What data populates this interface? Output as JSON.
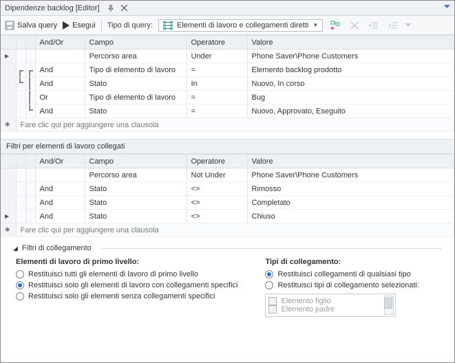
{
  "titlebar": {
    "title": "Dipendenze backlog [Editor]"
  },
  "toolbar": {
    "save_label": "Salva query",
    "run_label": "Esegui",
    "query_type_label": "Tipo di query:",
    "query_type_value": "Elementi di lavoro e collegamenti diretti"
  },
  "grid1": {
    "headers": {
      "andor": "And/Or",
      "campo": "Campo",
      "operatore": "Operatore",
      "valore": "Valore"
    },
    "rows": [
      {
        "andor": "",
        "campo": "Percorso area",
        "operatore": "Under",
        "valore": "Phone Saver\\Phone Customers",
        "arrow": true,
        "b1": "",
        "b2": ""
      },
      {
        "andor": "And",
        "campo": "Tipo di elemento di lavoro",
        "operatore": "=",
        "valore": "Elemento backlog prodotto",
        "arrow": false,
        "b1": "t",
        "b2": "t"
      },
      {
        "andor": "And",
        "campo": "Stato",
        "operatore": "In",
        "valore": "Nuovo, In corso",
        "arrow": false,
        "b1": "b",
        "b2": "m"
      },
      {
        "andor": "Or",
        "campo": "Tipo di elemento di lavoro",
        "operatore": "=",
        "valore": "Bug",
        "arrow": false,
        "b1": "",
        "b2": "m"
      },
      {
        "andor": "And",
        "campo": "Stato",
        "operatore": "=",
        "valore": "Nuovo, Approvato, Eseguito",
        "arrow": false,
        "b1": "",
        "b2": "b"
      }
    ],
    "add_label": "Fare clic qui per aggiungere una clausola"
  },
  "section2": {
    "title": "Filtri per elementi di lavoro collegati"
  },
  "grid2": {
    "headers": {
      "andor": "And/Or",
      "campo": "Campo",
      "operatore": "Operatore",
      "valore": "Valore"
    },
    "rows": [
      {
        "andor": "",
        "campo": "Percorso area",
        "operatore": "Not Under",
        "valore": "Phone Saver\\Phone Customers",
        "arrow": false
      },
      {
        "andor": "And",
        "campo": "Stato",
        "operatore": "<>",
        "valore": "Rimosso",
        "arrow": false
      },
      {
        "andor": "And",
        "campo": "Stato",
        "operatore": "<>",
        "valore": "Completato",
        "arrow": false
      },
      {
        "andor": "And",
        "campo": "Stato",
        "operatore": "<>",
        "valore": "Chiuso",
        "arrow": true
      }
    ],
    "add_label": "Fare clic qui per aggiungere una clausola"
  },
  "link_filters": {
    "title": "Filtri di collegamento",
    "left_title": "Elementi di lavoro di primo livello:",
    "left_options": [
      {
        "label": "Restituisci tutti gli elementi di lavoro di primo livello",
        "checked": false
      },
      {
        "label": "Restituisci solo gli elementi di lavoro con collegamenti specifici",
        "checked": true
      },
      {
        "label": "Restituisci solo gli elementi senza collegamenti specifici",
        "checked": false
      }
    ],
    "right_title": "Tipi di collegamento:",
    "right_options": [
      {
        "label": "Restituisci collegamenti di qualsiasi tipo",
        "checked": true
      },
      {
        "label": "Restituisci tipi di collegamento selezionati:",
        "checked": false
      }
    ],
    "link_type_items": [
      {
        "label": "Elemento figlio"
      },
      {
        "label": "Elemento padre"
      }
    ]
  },
  "colors": {
    "border": "#d7dde3",
    "header_bg": "#eef1f4",
    "accent": "#1e6fd6"
  }
}
